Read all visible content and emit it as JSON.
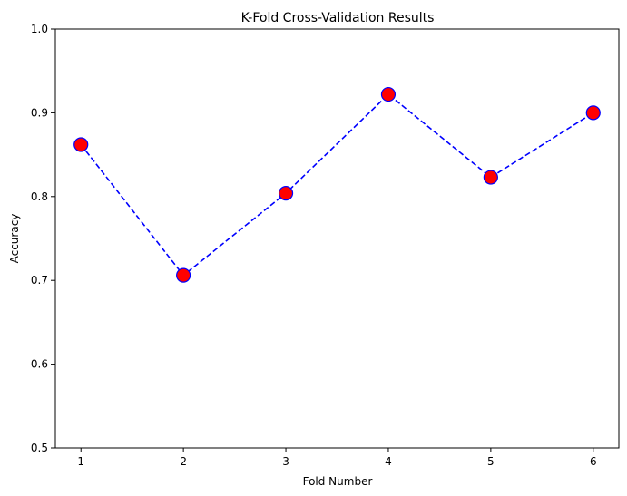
{
  "chart_data": {
    "type": "line",
    "title": "K-Fold Cross-Validation Results",
    "xlabel": "Fold Number",
    "ylabel": "Accuracy",
    "x": [
      1,
      2,
      3,
      4,
      5,
      6
    ],
    "xticks": [
      "1",
      "2",
      "3",
      "4",
      "5",
      "6"
    ],
    "series": [
      {
        "values": [
          0.862,
          0.706,
          0.804,
          0.922,
          0.823,
          0.9
        ],
        "line_color": "#0000ff",
        "line_style": "dashed",
        "marker": "circle",
        "marker_face_color": "#ff0000",
        "marker_edge_color": "#0000ff"
      }
    ],
    "ylim": [
      0.5,
      1.0
    ],
    "yticks": [
      "0.5",
      "0.6",
      "0.7",
      "0.8",
      "0.9",
      "1.0"
    ],
    "grid": false,
    "legend": "none"
  }
}
